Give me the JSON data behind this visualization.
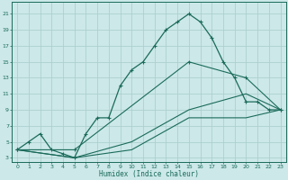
{
  "xlabel": "Humidex (Indice chaleur)",
  "bg_color": "#cce8e8",
  "line_color": "#1a6b5a",
  "grid_color": "#a8cccc",
  "xlim": [
    -0.5,
    23.5
  ],
  "ylim": [
    2.5,
    22.5
  ],
  "xticks": [
    0,
    1,
    2,
    3,
    4,
    5,
    6,
    7,
    8,
    9,
    10,
    11,
    12,
    13,
    14,
    15,
    16,
    17,
    18,
    19,
    20,
    21,
    22,
    23
  ],
  "yticks": [
    3,
    5,
    7,
    9,
    11,
    13,
    15,
    17,
    19,
    21
  ],
  "curve_main_x": [
    0,
    1,
    2,
    3,
    4,
    5,
    6,
    7,
    8,
    9,
    10,
    11,
    12,
    13,
    14,
    15,
    16,
    17,
    18,
    19,
    20,
    21,
    22,
    23
  ],
  "curve_main_y": [
    4,
    5,
    6,
    4,
    3.5,
    3,
    6,
    8,
    8,
    12,
    14,
    15,
    17,
    19,
    20,
    21,
    20,
    18,
    15,
    13,
    10,
    10,
    9,
    9
  ],
  "curve_low_x": [
    0,
    5,
    10,
    15,
    20,
    23
  ],
  "curve_low_y": [
    4,
    3,
    4,
    8,
    8,
    9
  ],
  "curve_mid_x": [
    0,
    5,
    10,
    15,
    20,
    23
  ],
  "curve_mid_y": [
    4,
    3,
    5,
    9,
    11,
    9
  ],
  "curve_high_x": [
    0,
    5,
    15,
    20,
    23
  ],
  "curve_high_y": [
    4,
    4,
    15,
    13,
    9
  ]
}
